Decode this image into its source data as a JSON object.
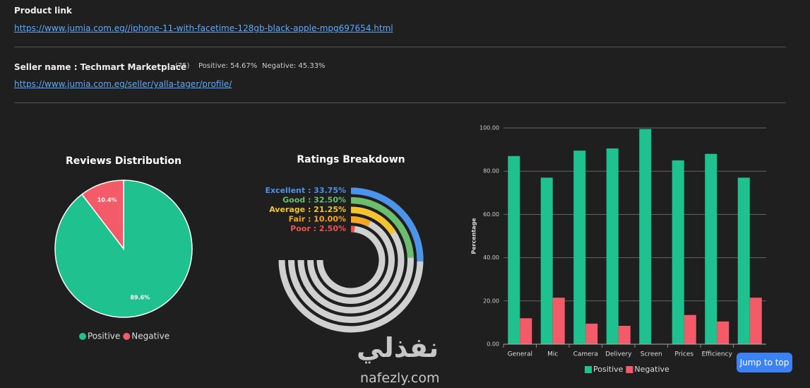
{
  "header": {
    "product_label": "Product link",
    "product_url": "https://www.jumia.com.eg//iphone-11-with-facetime-128gb-black-apple-mpg697654.html",
    "seller_name": "Seller name : Techmart Marketplace",
    "seller_count": "(75)",
    "seller_positive": "Positive: 54.67%",
    "seller_negative": "Negative: 45.33%",
    "seller_url": "https://www.jumia.com.eg/seller/yalla-tager/profile/"
  },
  "chart_data": [
    {
      "type": "pie",
      "title": "Reviews Distribution",
      "categories": [
        "Positive",
        "Negative"
      ],
      "values": [
        89.6,
        10.4
      ],
      "value_labels": [
        "89.6%",
        "10.4%"
      ],
      "colors": [
        "#1fc18f",
        "#f45b69"
      ]
    },
    {
      "type": "radial-bar",
      "title": "Ratings Breakdown",
      "values": [
        33.75,
        32.5,
        21.25,
        10,
        2.5
      ],
      "value_labels": [
        "Excellent : 33.75%",
        "Good : 32.50%",
        "Average : 21.25%",
        "Fair : 10.00%",
        "Poor : 2.50%"
      ],
      "colors": [
        "#4a94ec",
        "#6dbd6f",
        "#f4c430",
        "#f5a623",
        "#ef5350"
      ],
      "max": 100
    },
    {
      "type": "bar",
      "ylabel": "Percentage",
      "categories": [
        "General",
        "Mic",
        "Camera",
        "Delivery",
        "Screen",
        "Prices",
        "Efficiency",
        null
      ],
      "series": [
        {
          "name": "Positive",
          "color": "#1fc18f",
          "values": [
            87,
            77,
            89.5,
            90.5,
            99.5,
            85,
            88,
            77
          ]
        },
        {
          "name": "Negative",
          "color": "#f45b69",
          "values": [
            12,
            21.5,
            9.5,
            8.5,
            0,
            13.5,
            10.5,
            21.5
          ]
        }
      ],
      "ylim": [
        0,
        100
      ],
      "yticks": [
        {
          "value": 0,
          "label": "0.00"
        },
        {
          "value": 20,
          "label": "20.00"
        },
        {
          "value": 40,
          "label": "40.00"
        },
        {
          "value": 60,
          "label": "60.00"
        },
        {
          "value": 80,
          "label": "80.00"
        },
        {
          "value": 100,
          "label": "100.00"
        }
      ],
      "grid": true
    }
  ],
  "button": "Jump to top",
  "watermark": {
    "arabic": "نفذلي",
    "latin": "nafezly.com"
  }
}
